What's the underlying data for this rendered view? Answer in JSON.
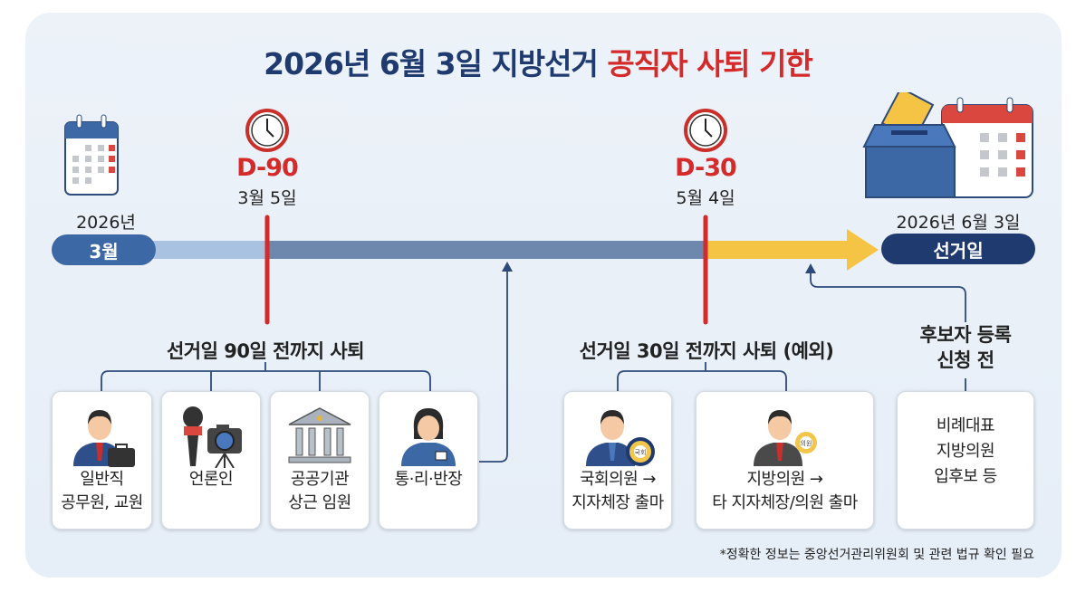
{
  "title": {
    "main": "2026년 6월 3일 지방선거 ",
    "highlight": "공직자 사퇴 기한"
  },
  "colors": {
    "navy": "#1f3a6e",
    "red": "#d42a2a",
    "timeline_light": "#a9c2e2",
    "timeline_mid": "#6e87ad",
    "timeline_final": "#f6c445"
  },
  "timeline": {
    "start": {
      "year": "2026년",
      "month": "3월",
      "icon": "calendar-icon"
    },
    "d90": {
      "label": "D-90",
      "date": "3월 5일",
      "icon": "clock-icon"
    },
    "d30": {
      "label": "D-30",
      "date": "5월 4일",
      "icon": "clock-icon"
    },
    "end": {
      "date": "2026년 6월 3일",
      "label": "선거일",
      "icon": "ballot-box-calendar-icon"
    }
  },
  "group90": {
    "heading": "선거일 90일 전까지 사퇴",
    "cards": [
      {
        "text": "일반직\n공무원, 교원",
        "icon": "official-briefcase-icon"
      },
      {
        "text": "언론인",
        "icon": "microphone-camera-icon"
      },
      {
        "text": "공공기관\n상근 임원",
        "icon": "institution-building-icon"
      },
      {
        "text": "통·리·반장",
        "icon": "woman-badge-icon"
      }
    ]
  },
  "group30": {
    "heading": "선거일 30일 전까지 사퇴 (예외)",
    "cards": [
      {
        "text": "국회의원 →\n지자체장 출마",
        "icon": "lawmaker-icon",
        "badge": "국회"
      },
      {
        "text": "지방의원 →\n타 지자체장/의원 출마",
        "icon": "councilor-icon",
        "badge": "의원"
      }
    ]
  },
  "candidate": {
    "heading": "후보자 등록\n신청 전",
    "card_text": "비례대표\n지방의원\n입후보 등"
  },
  "footnote": "*정확한 정보는 중앙선거관리위원회 및 관련 법규 확인 필요"
}
